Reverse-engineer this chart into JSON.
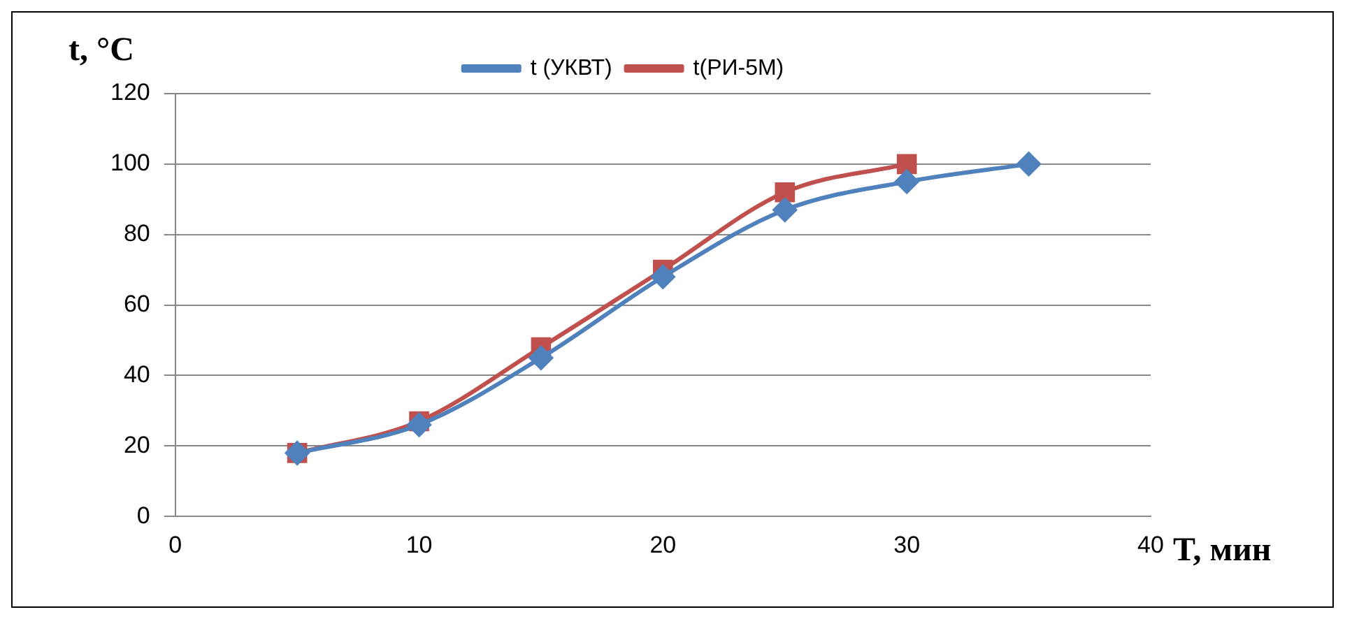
{
  "chart_data": {
    "type": "line",
    "xlabel": "T, мин",
    "ylabel": "t, °C",
    "xlim": [
      0,
      40
    ],
    "xticks": [
      0,
      10,
      20,
      30,
      40
    ],
    "ylim": [
      0,
      120
    ],
    "yticks": [
      0,
      20,
      40,
      60,
      80,
      100,
      120
    ],
    "grid": "y",
    "legend": "top",
    "series": [
      {
        "name": "t (УКВТ)",
        "color": "#4f81bd",
        "marker": "diamond",
        "x": [
          5,
          10,
          15,
          20,
          25,
          30,
          35
        ],
        "values": [
          18,
          26,
          45,
          68,
          87,
          95,
          100
        ]
      },
      {
        "name": "t(РИ-5М)",
        "color": "#c0504d",
        "marker": "square",
        "x": [
          5,
          10,
          15,
          20,
          25,
          30
        ],
        "values": [
          18,
          27,
          48,
          70,
          92,
          100
        ]
      }
    ]
  }
}
